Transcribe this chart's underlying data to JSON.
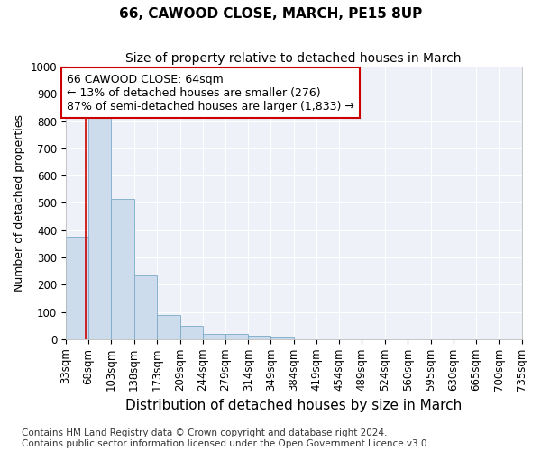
{
  "title": "66, CAWOOD CLOSE, MARCH, PE15 8UP",
  "subtitle": "Size of property relative to detached houses in March",
  "xlabel": "Distribution of detached houses by size in March",
  "ylabel": "Number of detached properties",
  "bin_edges": [
    33,
    68,
    103,
    138,
    173,
    209,
    244,
    279,
    314,
    349,
    384,
    419,
    454,
    489,
    524,
    560,
    595,
    630,
    665,
    700,
    735
  ],
  "values": [
    375,
    820,
    515,
    235,
    90,
    50,
    20,
    18,
    13,
    9,
    0,
    0,
    0,
    0,
    0,
    0,
    0,
    0,
    0,
    0
  ],
  "bar_fill_color": "#ccdcec",
  "bar_edge_color": "#7aaac8",
  "property_size": 64,
  "property_line_color": "#cc0000",
  "annotation_text": "66 CAWOOD CLOSE: 64sqm\n← 13% of detached houses are smaller (276)\n87% of semi-detached houses are larger (1,833) →",
  "annotation_box_facecolor": "#ffffff",
  "annotation_box_edgecolor": "#cc0000",
  "ylim": [
    0,
    1000
  ],
  "yticks": [
    0,
    100,
    200,
    300,
    400,
    500,
    600,
    700,
    800,
    900,
    1000
  ],
  "bg_color": "#eef2f8",
  "grid_color": "#ffffff",
  "title_fontsize": 11,
  "subtitle_fontsize": 10,
  "xlabel_fontsize": 11,
  "ylabel_fontsize": 9,
  "tick_fontsize": 8.5,
  "annotation_fontsize": 9,
  "footer_fontsize": 7.5,
  "footer_line1": "Contains HM Land Registry data © Crown copyright and database right 2024.",
  "footer_line2": "Contains public sector information licensed under the Open Government Licence v3.0."
}
